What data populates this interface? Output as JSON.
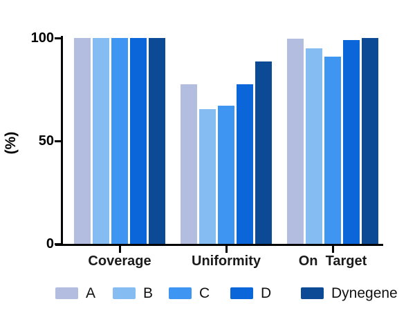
{
  "chart_data": {
    "type": "bar",
    "title": "",
    "xlabel": "",
    "ylabel": "(%)",
    "ylim": [
      0,
      100
    ],
    "yticks": [
      0,
      50,
      100
    ],
    "grid": false,
    "legend_position": "bottom",
    "axis_color": "#000000",
    "categories": [
      "Coverage",
      "Uniformity",
      "On  Target"
    ],
    "series": [
      {
        "name": "A",
        "color": "#b3bddf",
        "values": [
          100,
          77.5,
          99.5
        ]
      },
      {
        "name": "B",
        "color": "#85bdf2",
        "values": [
          100,
          65.5,
          95
        ]
      },
      {
        "name": "C",
        "color": "#3f96f2",
        "values": [
          100,
          67,
          91
        ]
      },
      {
        "name": "D",
        "color": "#0b66d9",
        "values": [
          100,
          77.5,
          99
        ]
      },
      {
        "name": "Dynegene",
        "color": "#0d4a96",
        "values": [
          100,
          88.5,
          100
        ]
      }
    ]
  }
}
